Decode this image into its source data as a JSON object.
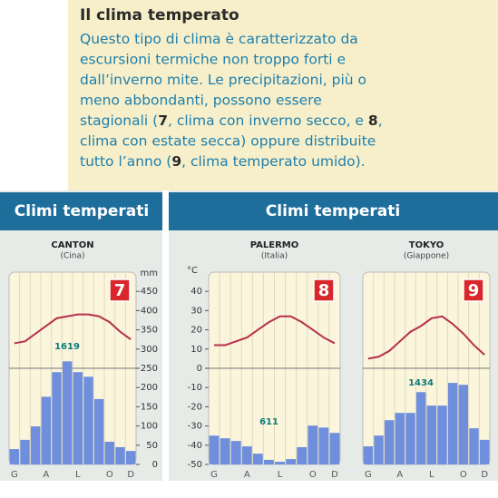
{
  "intro": {
    "title": "Il clima temperato",
    "lines": [
      [
        {
          "text": "Questo tipo di clima è caratterizzato da"
        }
      ],
      [
        {
          "text": "escursioni termiche non troppo forti e"
        }
      ],
      [
        {
          "text": "dall’inverno mite. Le precipitazioni, più o"
        }
      ],
      [
        {
          "text": "meno abbondanti, possono essere"
        }
      ],
      [
        {
          "text": "stagionali ("
        },
        {
          "text": "7",
          "bold": true
        },
        {
          "text": ", clima con inverno secco, e "
        },
        {
          "text": "8",
          "bold": true
        },
        {
          "text": ","
        }
      ],
      [
        {
          "text": "clima con estate secca) oppure distribuite"
        }
      ],
      [
        {
          "text": "tutto l’anno ("
        },
        {
          "text": "9",
          "bold": true
        },
        {
          "text": ", clima temperato umido)."
        }
      ]
    ]
  },
  "panels": [
    {
      "header": "Climi temperati"
    },
    {
      "header": "Climi temperati"
    }
  ],
  "chart_data": [
    {
      "type": "climate",
      "title": "CANTON",
      "subtitle": "(Cina)",
      "badge": "7",
      "annotation": "1619",
      "categories": [
        "G",
        null,
        null,
        "A",
        null,
        null,
        "L",
        null,
        null,
        "O",
        null,
        "D"
      ],
      "ylim": [
        -50,
        50
      ],
      "y2lim": [
        0,
        500
      ],
      "y2label": "mm",
      "y2ticks": [
        0,
        50,
        100,
        150,
        200,
        250,
        300,
        350,
        400,
        450
      ],
      "series": [
        {
          "type": "bar",
          "axis": "y2",
          "color": "#6f8fdc",
          "values": [
            40,
            64,
            99,
            176,
            240,
            268,
            240,
            228,
            170,
            59,
            45,
            35
          ]
        },
        {
          "type": "line",
          "color": "#b5304c",
          "values": [
            13,
            14,
            18,
            22,
            26,
            27,
            28,
            28,
            27,
            24,
            19,
            15
          ]
        }
      ]
    },
    {
      "type": "climate",
      "title": "PALERMO",
      "subtitle": "(Italia)",
      "badge": "8",
      "annotation": "611",
      "categories": [
        "G",
        null,
        null,
        "A",
        null,
        null,
        "L",
        null,
        null,
        "O",
        null,
        "D"
      ],
      "ylim": [
        -50,
        50
      ],
      "y2lim": [
        0,
        500
      ],
      "ylabel": "°C",
      "yticks": [
        -50,
        -40,
        -30,
        -20,
        -10,
        0,
        10,
        20,
        30,
        40
      ],
      "series": [
        {
          "type": "bar",
          "axis": "y2",
          "color": "#6f8fdc",
          "values": [
            75,
            68,
            61,
            47,
            28,
            12,
            7,
            14,
            45,
            101,
            96,
            82
          ]
        },
        {
          "type": "line",
          "color": "#b5304c",
          "values": [
            12,
            12,
            14,
            16,
            20,
            24,
            27,
            27,
            24,
            20,
            16,
            13
          ]
        }
      ]
    },
    {
      "type": "climate",
      "title": "TOKYO",
      "subtitle": "(Giappone)",
      "badge": "9",
      "annotation": "1434",
      "categories": [
        "G",
        null,
        null,
        "A",
        null,
        null,
        "L",
        null,
        null,
        "O",
        null,
        "D"
      ],
      "ylim": [
        -50,
        50
      ],
      "y2lim": [
        0,
        500
      ],
      "series": [
        {
          "type": "bar",
          "axis": "y2",
          "color": "#6f8fdc",
          "values": [
            47,
            75,
            115,
            134,
            134,
            188,
            153,
            153,
            212,
            207,
            94,
            64
          ]
        },
        {
          "type": "line",
          "color": "#b5304c",
          "values": [
            5,
            6,
            9,
            14,
            19,
            22,
            26,
            27,
            23,
            18,
            12,
            7
          ]
        }
      ]
    }
  ]
}
